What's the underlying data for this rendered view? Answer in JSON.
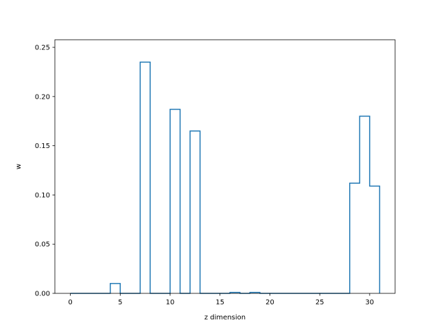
{
  "chart_data": {
    "type": "step-histogram",
    "xlabel": "z dimension",
    "ylabel": "w",
    "xlim": [
      -1.55,
      32.55
    ],
    "ylim": [
      0,
      0.2577
    ],
    "xticks": [
      0,
      5,
      10,
      15,
      20,
      25,
      30
    ],
    "yticks": [
      0.0,
      0.05,
      0.1,
      0.15,
      0.2,
      0.25
    ],
    "ytick_labels": [
      "0.00",
      "0.05",
      "0.10",
      "0.15",
      "0.20",
      "0.25"
    ],
    "grid": false,
    "legend": "none",
    "series_color": "#1f77b4",
    "bins": {
      "edges_start": 0,
      "width": 1,
      "values": [
        0,
        0,
        0,
        0,
        0.01,
        0,
        0,
        0.235,
        0,
        0,
        0.187,
        0,
        0.165,
        0,
        0,
        0,
        0.001,
        0,
        0.001,
        0,
        0,
        0,
        0,
        0,
        0,
        0,
        0,
        0,
        0.112,
        0.18,
        0.109
      ]
    }
  }
}
